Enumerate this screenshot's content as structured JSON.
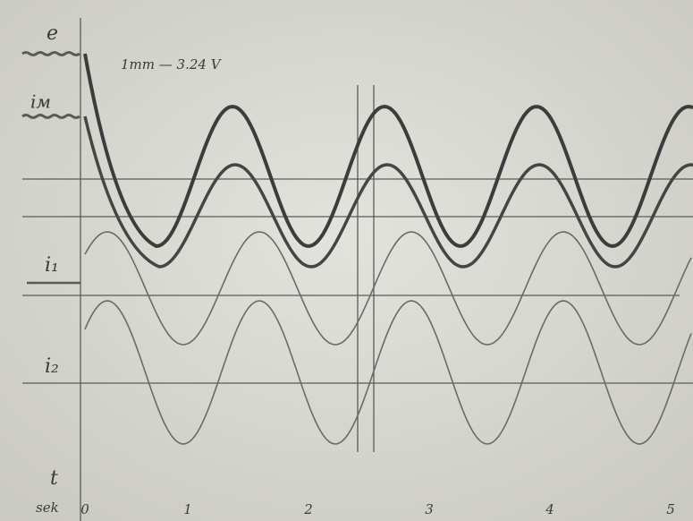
{
  "labels": {
    "e": "e",
    "im": "iм",
    "i1": "i₁",
    "i2": "i₂",
    "t": "t",
    "unit": "sek",
    "scale": "1mm — 3.24 V"
  },
  "time_ticks": [
    "0",
    "1",
    "2",
    "3",
    "4",
    "5"
  ]
}
